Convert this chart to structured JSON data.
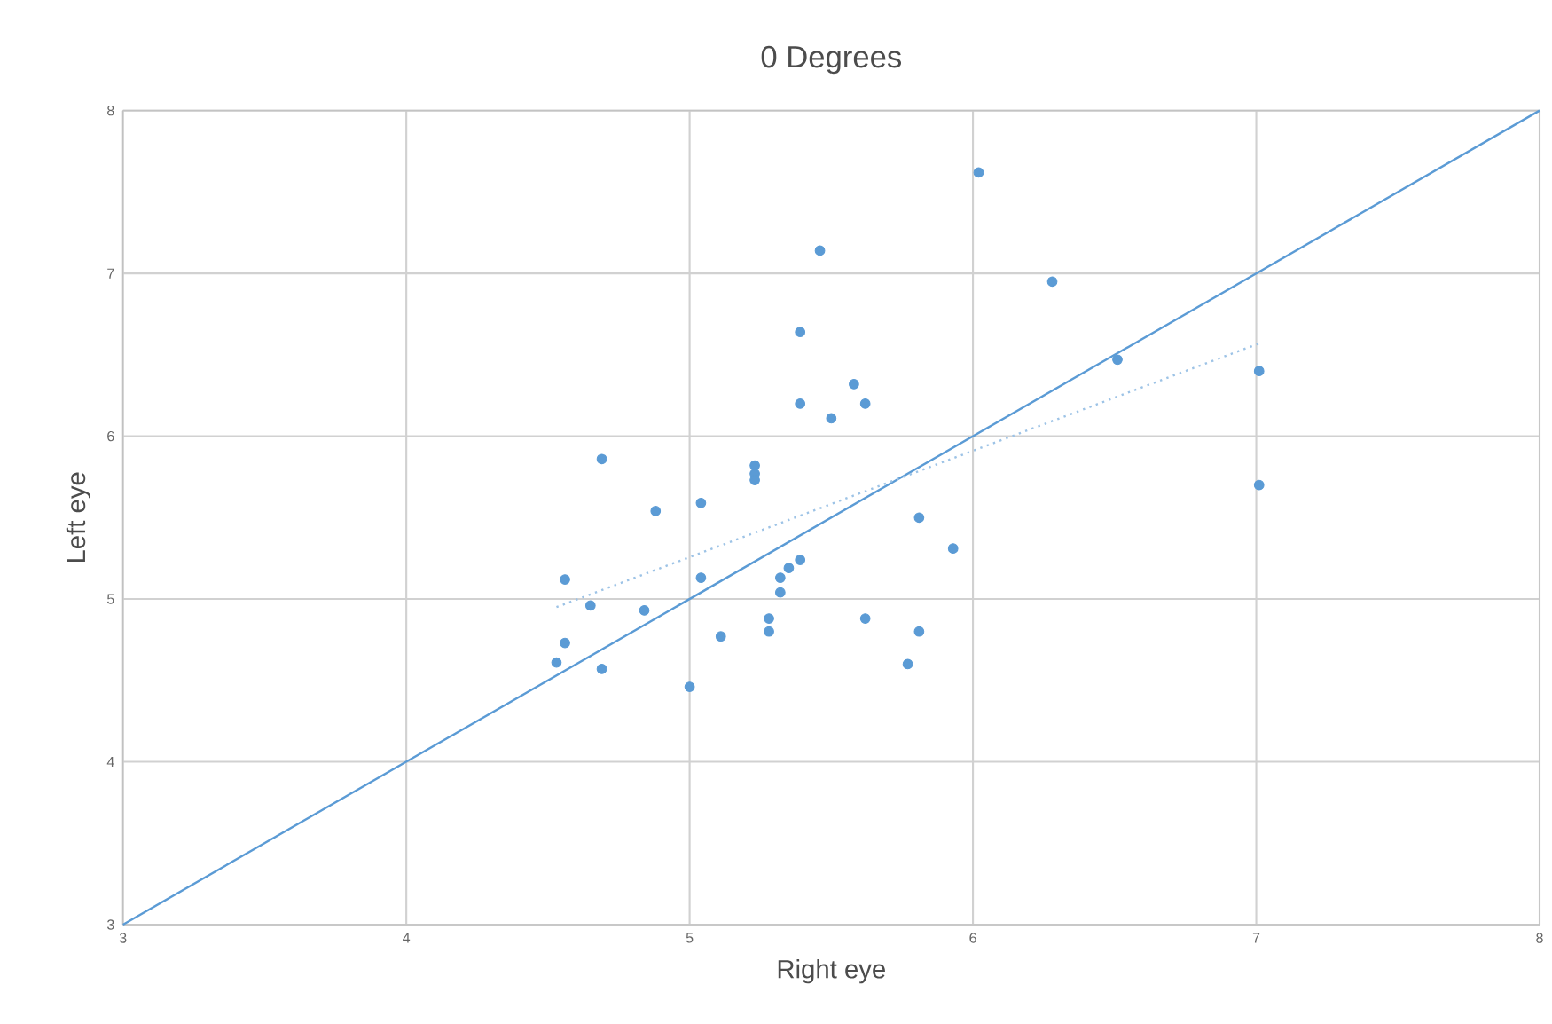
{
  "chart_data": {
    "type": "scatter",
    "title": "0 Degrees",
    "xlabel": "Right eye",
    "ylabel": "Left eye",
    "xlim": [
      3,
      8
    ],
    "ylim": [
      3,
      8
    ],
    "xticks": [
      3,
      4,
      5,
      6,
      7,
      8
    ],
    "yticks": [
      3,
      4,
      5,
      6,
      7,
      8
    ],
    "grid": true,
    "marker": "circle",
    "series": [
      {
        "color": "#5b9bd5",
        "x": [
          4.53,
          4.56,
          4.56,
          4.65,
          4.69,
          4.69,
          4.84,
          4.88,
          5.0,
          5.04,
          5.04,
          5.11,
          5.23,
          5.23,
          5.23,
          5.28,
          5.28,
          5.32,
          5.32,
          5.35,
          5.39,
          5.39,
          5.39,
          5.46,
          5.5,
          5.58,
          5.62,
          5.62,
          5.81,
          5.81,
          5.77,
          5.93,
          6.02,
          6.28,
          6.51,
          7.01,
          7.01
        ],
        "values": [
          4.61,
          4.73,
          5.12,
          4.96,
          4.57,
          5.86,
          4.93,
          5.54,
          4.46,
          5.59,
          5.13,
          4.77,
          5.82,
          5.77,
          5.73,
          4.88,
          4.8,
          5.04,
          5.13,
          5.19,
          5.24,
          6.2,
          6.64,
          7.14,
          6.11,
          6.32,
          6.2,
          4.88,
          5.5,
          4.8,
          4.6,
          5.31,
          7.62,
          6.95,
          6.47,
          6.4,
          5.7
        ]
      },
      {
        "type": "line",
        "color": "#5b9bd5",
        "line_style": "solid",
        "marker": "none",
        "x": [
          3,
          8
        ],
        "values": [
          3,
          8
        ]
      },
      {
        "type": "line",
        "color": "#9dc3e6",
        "line_style": "dotted",
        "marker": "none",
        "x": [
          4.53,
          7.01
        ],
        "values": [
          4.95,
          6.57
        ]
      }
    ]
  }
}
